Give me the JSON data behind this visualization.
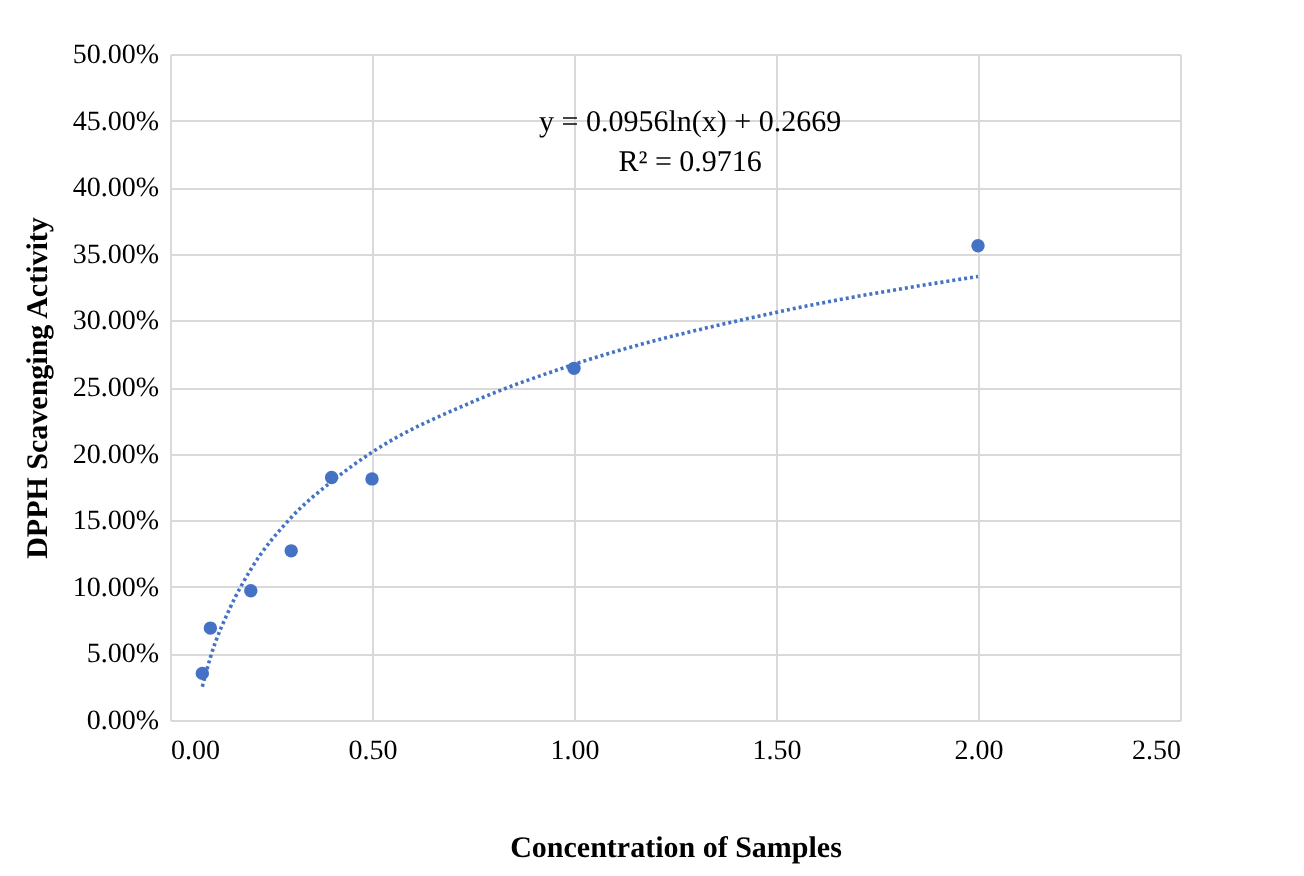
{
  "chart_data": {
    "type": "scatter",
    "xlabel": "Concentration of Samples",
    "ylabel": "DPPH Scavenging Activity",
    "annotations": [
      "y = 0.0956ln(x) + 0.2669",
      "R² = 0.9716"
    ],
    "grid": true,
    "xlim": [
      0,
      2.5
    ],
    "xticks": [
      {
        "value": 0,
        "label": "0.00"
      },
      {
        "value": 0.5,
        "label": "0.50"
      },
      {
        "value": 1,
        "label": "1.00"
      },
      {
        "value": 1.5,
        "label": "1.50"
      },
      {
        "value": 2,
        "label": "2.00"
      },
      {
        "value": 2.5,
        "label": "2.50"
      }
    ],
    "ylim": [
      0,
      50
    ],
    "yticks": [
      {
        "value": 0,
        "label": "0.00%"
      },
      {
        "value": 5,
        "label": "5.00%"
      },
      {
        "value": 10,
        "label": "10.00%"
      },
      {
        "value": 15,
        "label": "15.00%"
      },
      {
        "value": 20,
        "label": "20.00%"
      },
      {
        "value": 25,
        "label": "25.00%"
      },
      {
        "value": 30,
        "label": "30.00%"
      },
      {
        "value": 35,
        "label": "35.00%"
      },
      {
        "value": 40,
        "label": "40.00%"
      },
      {
        "value": 45,
        "label": "45.00%"
      },
      {
        "value": 50,
        "label": "50.00%"
      }
    ],
    "series": [
      {
        "marker": "circle",
        "color": "#4472c4",
        "x": [
          0.08,
          0.1,
          0.2,
          0.3,
          0.4,
          0.5,
          1,
          2
        ],
        "values": [
          3.5,
          6.9,
          9.7,
          12.7,
          18.2,
          18.1,
          26.4,
          35.6
        ]
      },
      {
        "type": "line",
        "marker": "none",
        "line_style": "dotted",
        "color": "#4472c4",
        "x": [
          0.08,
          0.1,
          0.15,
          0.2,
          0.3,
          0.4,
          0.5,
          0.75,
          1,
          1.5,
          2
        ],
        "values": [
          2.5,
          4.7,
          8.5,
          11.3,
          15.2,
          17.9,
          20.1,
          23.9,
          26.7,
          30.6,
          33.3
        ]
      }
    ]
  }
}
